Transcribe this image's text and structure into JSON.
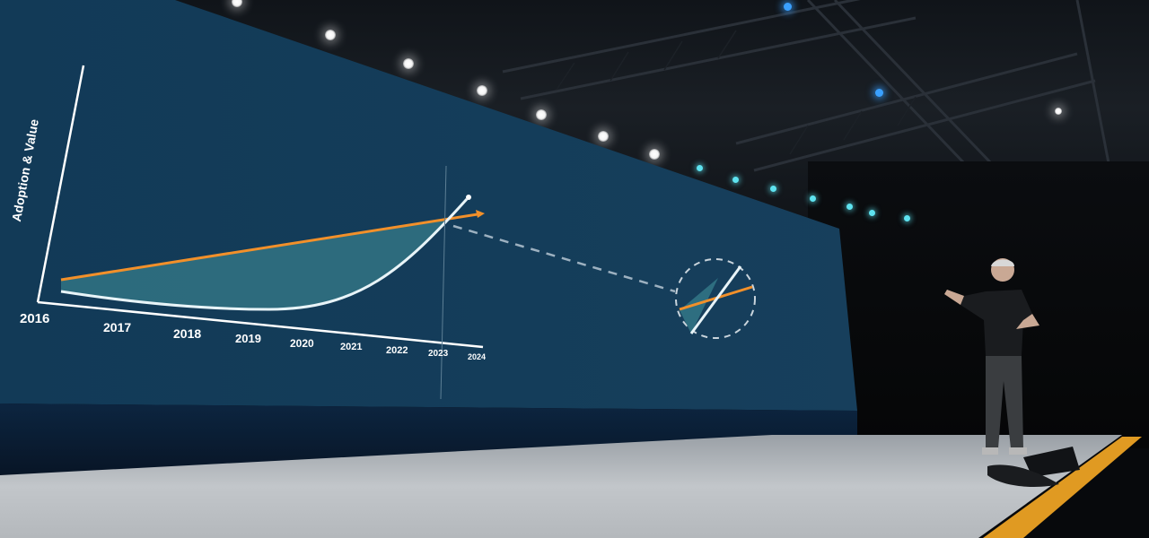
{
  "slide": {
    "y_axis_label": "Adoption & Value",
    "x_tick_labels": [
      "2016",
      "2017",
      "2018",
      "2019",
      "2020",
      "2021",
      "2022",
      "2023",
      "2024"
    ]
  },
  "colors": {
    "screen_background": "#143d5a",
    "axis": "#ffffff",
    "linear_line": "#f2902a",
    "exponential_curve": "#e8f4f8",
    "gap_fill": "#2e6e80",
    "stage_edge": "#e09a22"
  },
  "icons": [
    "stage-light",
    "speaker-monitor"
  ]
}
